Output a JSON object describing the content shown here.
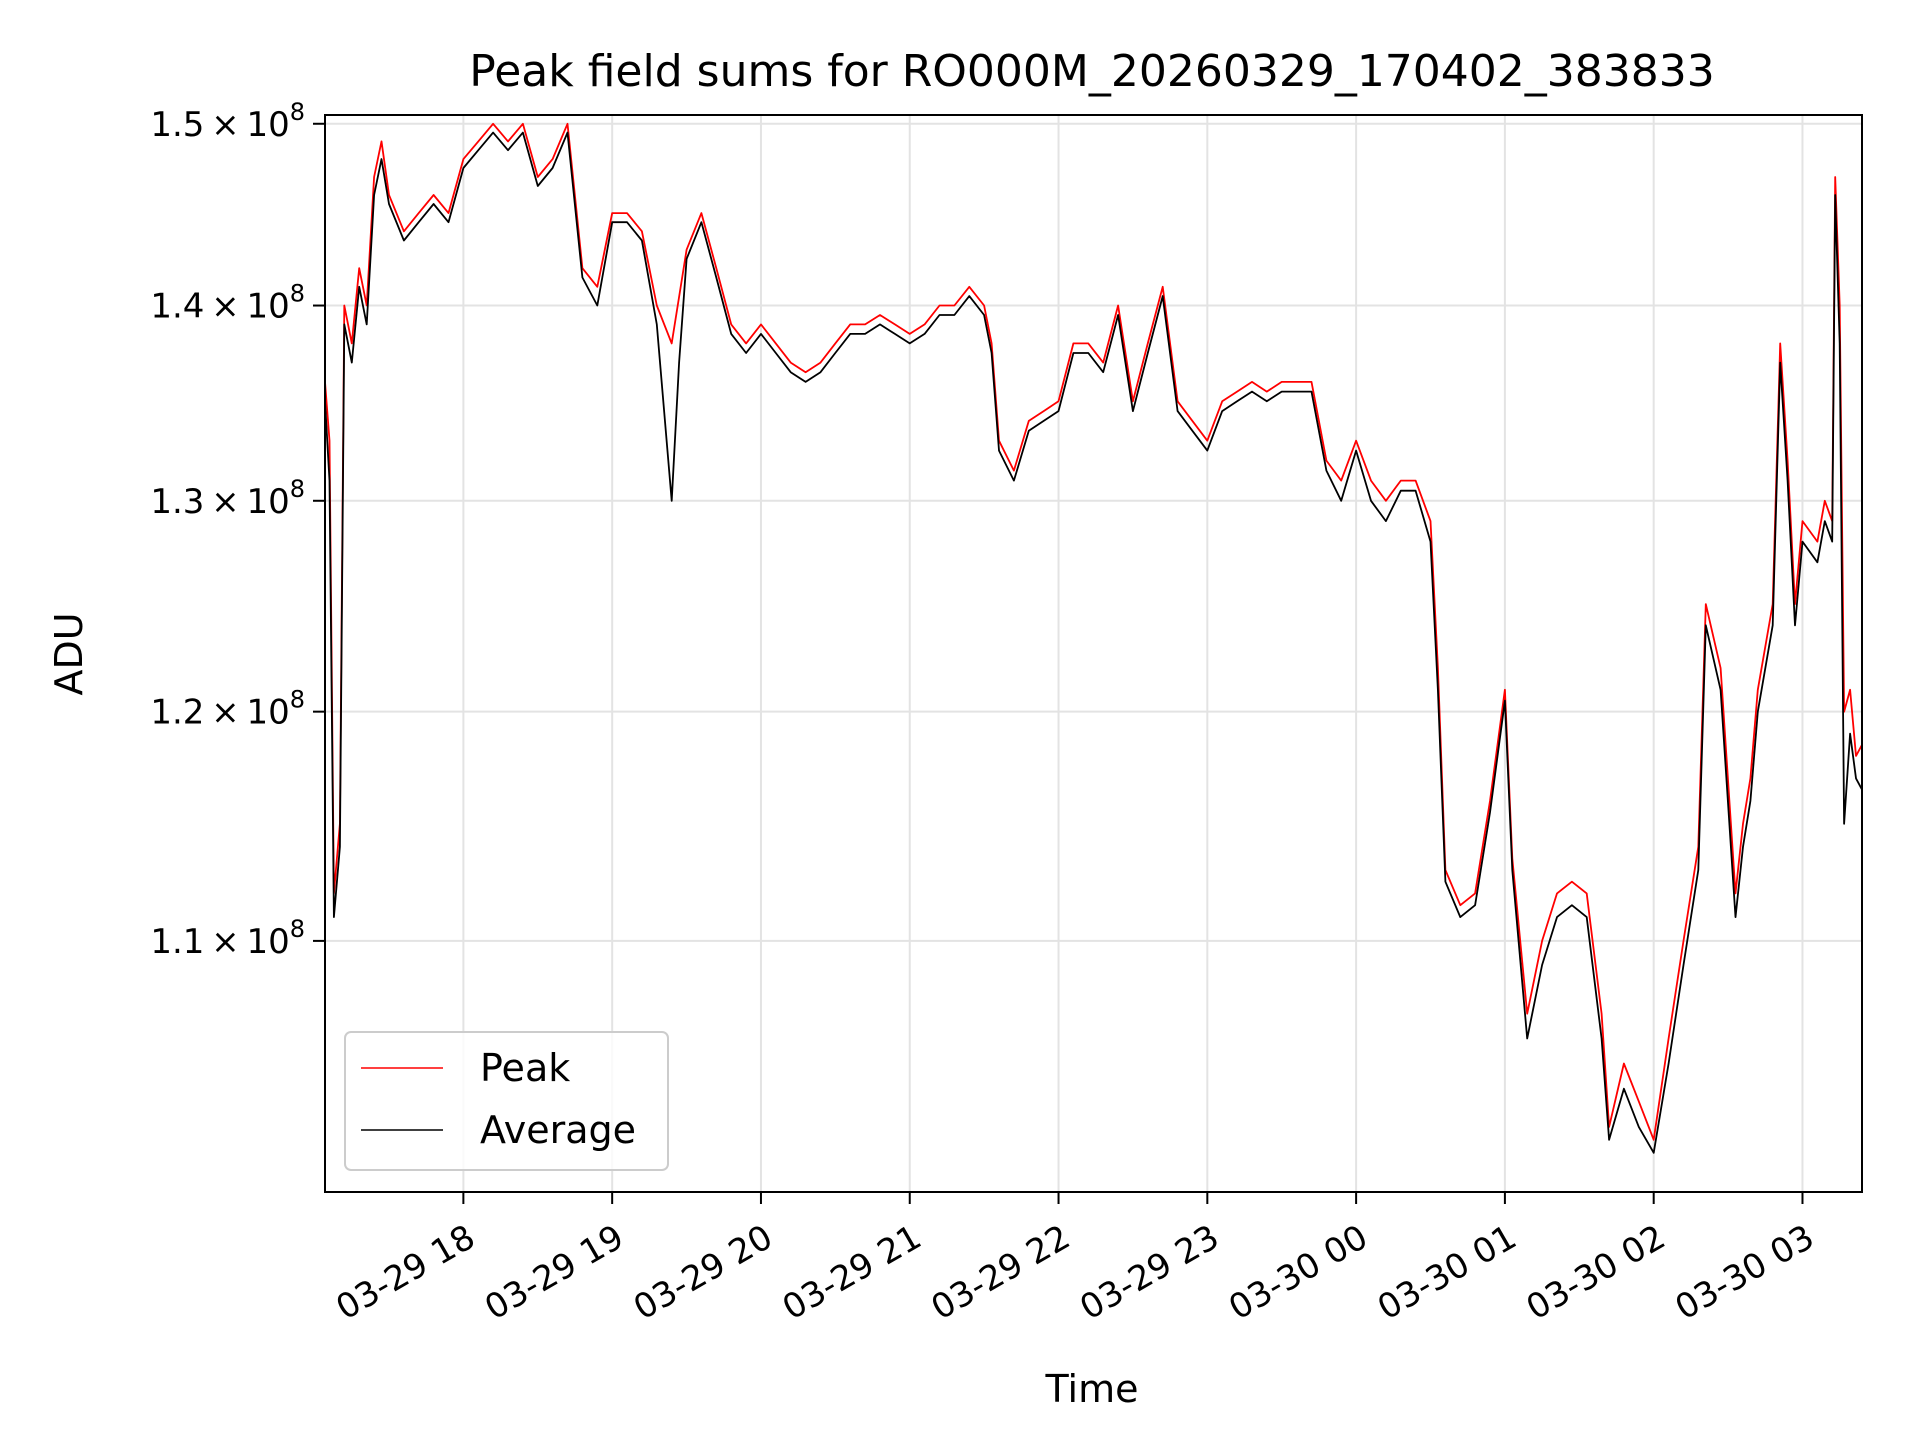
{
  "chart_data": {
    "type": "line",
    "title": "Peak field sums for RO000M_20260329_170402_383833",
    "xlabel": "Time",
    "ylabel": "ADU",
    "x_ticks": [
      "03-29 18",
      "03-29 19",
      "03-29 20",
      "03-29 21",
      "03-29 22",
      "03-29 23",
      "03-30 00",
      "03-30 01",
      "03-30 02",
      "03-30 03"
    ],
    "x_tick_hours": [
      18,
      19,
      20,
      21,
      22,
      23,
      24,
      25,
      26,
      27
    ],
    "xlim_hours": [
      17.07,
      27.4
    ],
    "y_ticks": [
      110000000.0,
      120000000.0,
      130000000.0,
      140000000.0,
      150000000.0
    ],
    "y_tick_labels": [
      {
        "mant": "1.1",
        "base": "10",
        "exp": "8"
      },
      {
        "mant": "1.2",
        "base": "10",
        "exp": "8"
      },
      {
        "mant": "1.3",
        "base": "10",
        "exp": "8"
      },
      {
        "mant": "1.4",
        "base": "10",
        "exp": "8"
      },
      {
        "mant": "1.5",
        "base": "10",
        "exp": "8"
      }
    ],
    "ylim": [
      100000000.0,
      150500000.0
    ],
    "y_scale": "log",
    "grid": true,
    "legend": {
      "placement": "lower-left",
      "entries": [
        "Peak",
        "Average"
      ]
    },
    "x_unit_note": "hours since 2026-03-29 00:00",
    "series": [
      {
        "name": "Peak",
        "color": "#ff0000",
        "points": [
          [
            17.07,
            136000000.0
          ],
          [
            17.1,
            133000000.0
          ],
          [
            17.13,
            112000000.0
          ],
          [
            17.17,
            115000000.0
          ],
          [
            17.2,
            140000000.0
          ],
          [
            17.25,
            138000000.0
          ],
          [
            17.3,
            142000000.0
          ],
          [
            17.35,
            140000000.0
          ],
          [
            17.4,
            147000000.0
          ],
          [
            17.45,
            149000000.0
          ],
          [
            17.5,
            146000000.0
          ],
          [
            17.6,
            144000000.0
          ],
          [
            17.7,
            145000000.0
          ],
          [
            17.8,
            146000000.0
          ],
          [
            17.9,
            145000000.0
          ],
          [
            18.0,
            148000000.0
          ],
          [
            18.1,
            149000000.0
          ],
          [
            18.2,
            150000000.0
          ],
          [
            18.3,
            149000000.0
          ],
          [
            18.4,
            150000000.0
          ],
          [
            18.5,
            147000000.0
          ],
          [
            18.6,
            148000000.0
          ],
          [
            18.7,
            150000000.0
          ],
          [
            18.8,
            142000000.0
          ],
          [
            18.9,
            141000000.0
          ],
          [
            19.0,
            145000000.0
          ],
          [
            19.1,
            145000000.0
          ],
          [
            19.2,
            144000000.0
          ],
          [
            19.3,
            140000000.0
          ],
          [
            19.4,
            138000000.0
          ],
          [
            19.5,
            143000000.0
          ],
          [
            19.6,
            145000000.0
          ],
          [
            19.7,
            142000000.0
          ],
          [
            19.8,
            139000000.0
          ],
          [
            19.9,
            138000000.0
          ],
          [
            20.0,
            139000000.0
          ],
          [
            20.1,
            138000000.0
          ],
          [
            20.2,
            137000000.0
          ],
          [
            20.3,
            136500000.0
          ],
          [
            20.4,
            137000000.0
          ],
          [
            20.5,
            138000000.0
          ],
          [
            20.6,
            139000000.0
          ],
          [
            20.7,
            139000000.0
          ],
          [
            20.8,
            139500000.0
          ],
          [
            20.9,
            139000000.0
          ],
          [
            21.0,
            138500000.0
          ],
          [
            21.1,
            139000000.0
          ],
          [
            21.2,
            140000000.0
          ],
          [
            21.3,
            140000000.0
          ],
          [
            21.4,
            141000000.0
          ],
          [
            21.5,
            140000000.0
          ],
          [
            21.55,
            138000000.0
          ],
          [
            21.6,
            133000000.0
          ],
          [
            21.7,
            131500000.0
          ],
          [
            21.8,
            134000000.0
          ],
          [
            21.9,
            134500000.0
          ],
          [
            22.0,
            135000000.0
          ],
          [
            22.1,
            138000000.0
          ],
          [
            22.2,
            138000000.0
          ],
          [
            22.3,
            137000000.0
          ],
          [
            22.4,
            140000000.0
          ],
          [
            22.5,
            135000000.0
          ],
          [
            22.6,
            138000000.0
          ],
          [
            22.7,
            141000000.0
          ],
          [
            22.8,
            135000000.0
          ],
          [
            22.9,
            134000000.0
          ],
          [
            23.0,
            133000000.0
          ],
          [
            23.1,
            135000000.0
          ],
          [
            23.2,
            135500000.0
          ],
          [
            23.3,
            136000000.0
          ],
          [
            23.4,
            135500000.0
          ],
          [
            23.5,
            136000000.0
          ],
          [
            23.6,
            136000000.0
          ],
          [
            23.7,
            136000000.0
          ],
          [
            23.8,
            132000000.0
          ],
          [
            23.9,
            131000000.0
          ],
          [
            24.0,
            133000000.0
          ],
          [
            24.1,
            131000000.0
          ],
          [
            24.2,
            130000000.0
          ],
          [
            24.3,
            131000000.0
          ],
          [
            24.4,
            131000000.0
          ],
          [
            24.5,
            129000000.0
          ],
          [
            24.55,
            122000000.0
          ],
          [
            24.6,
            113000000.0
          ],
          [
            24.7,
            111500000.0
          ],
          [
            24.8,
            112000000.0
          ],
          [
            24.9,
            116000000.0
          ],
          [
            25.0,
            121000000.0
          ],
          [
            25.05,
            113500000.0
          ],
          [
            25.15,
            107000000.0
          ],
          [
            25.25,
            110000000.0
          ],
          [
            25.35,
            112000000.0
          ],
          [
            25.45,
            112500000.0
          ],
          [
            25.55,
            112000000.0
          ],
          [
            25.65,
            107000000.0
          ],
          [
            25.7,
            102500000.0
          ],
          [
            25.8,
            105000000.0
          ],
          [
            25.9,
            103500000.0
          ],
          [
            26.0,
            102000000.0
          ],
          [
            26.1,
            106000000.0
          ],
          [
            26.2,
            110000000.0
          ],
          [
            26.3,
            114000000.0
          ],
          [
            26.35,
            125000000.0
          ],
          [
            26.45,
            122000000.0
          ],
          [
            26.55,
            112000000.0
          ],
          [
            26.6,
            115000000.0
          ],
          [
            26.65,
            117000000.0
          ],
          [
            26.7,
            121000000.0
          ],
          [
            26.8,
            125000000.0
          ],
          [
            26.85,
            138000000.0
          ],
          [
            26.9,
            132000000.0
          ],
          [
            26.95,
            125000000.0
          ],
          [
            27.0,
            129000000.0
          ],
          [
            27.1,
            128000000.0
          ],
          [
            27.15,
            130000000.0
          ],
          [
            27.2,
            129000000.0
          ],
          [
            27.22,
            147000000.0
          ],
          [
            27.25,
            140000000.0
          ],
          [
            27.28,
            120000000.0
          ],
          [
            27.32,
            121000000.0
          ],
          [
            27.36,
            118000000.0
          ],
          [
            27.4,
            118500000.0
          ]
        ]
      },
      {
        "name": "Average",
        "color": "#000000",
        "points": [
          [
            17.07,
            135000000.0
          ],
          [
            17.1,
            131000000.0
          ],
          [
            17.13,
            111000000.0
          ],
          [
            17.17,
            114000000.0
          ],
          [
            17.2,
            139000000.0
          ],
          [
            17.25,
            137000000.0
          ],
          [
            17.3,
            141000000.0
          ],
          [
            17.35,
            139000000.0
          ],
          [
            17.4,
            146000000.0
          ],
          [
            17.45,
            148000000.0
          ],
          [
            17.5,
            145500000.0
          ],
          [
            17.6,
            143500000.0
          ],
          [
            17.7,
            144500000.0
          ],
          [
            17.8,
            145500000.0
          ],
          [
            17.9,
            144500000.0
          ],
          [
            18.0,
            147500000.0
          ],
          [
            18.1,
            148500000.0
          ],
          [
            18.2,
            149500000.0
          ],
          [
            18.3,
            148500000.0
          ],
          [
            18.4,
            149500000.0
          ],
          [
            18.5,
            146500000.0
          ],
          [
            18.6,
            147500000.0
          ],
          [
            18.7,
            149500000.0
          ],
          [
            18.8,
            141500000.0
          ],
          [
            18.9,
            140000000.0
          ],
          [
            19.0,
            144500000.0
          ],
          [
            19.1,
            144500000.0
          ],
          [
            19.2,
            143500000.0
          ],
          [
            19.3,
            139000000.0
          ],
          [
            19.4,
            130000000.0
          ],
          [
            19.45,
            137000000.0
          ],
          [
            19.5,
            142500000.0
          ],
          [
            19.6,
            144500000.0
          ],
          [
            19.7,
            141500000.0
          ],
          [
            19.8,
            138500000.0
          ],
          [
            19.9,
            137500000.0
          ],
          [
            20.0,
            138500000.0
          ],
          [
            20.1,
            137500000.0
          ],
          [
            20.2,
            136500000.0
          ],
          [
            20.3,
            136000000.0
          ],
          [
            20.4,
            136500000.0
          ],
          [
            20.5,
            137500000.0
          ],
          [
            20.6,
            138500000.0
          ],
          [
            20.7,
            138500000.0
          ],
          [
            20.8,
            139000000.0
          ],
          [
            20.9,
            138500000.0
          ],
          [
            21.0,
            138000000.0
          ],
          [
            21.1,
            138500000.0
          ],
          [
            21.2,
            139500000.0
          ],
          [
            21.3,
            139500000.0
          ],
          [
            21.4,
            140500000.0
          ],
          [
            21.5,
            139500000.0
          ],
          [
            21.55,
            137500000.0
          ],
          [
            21.6,
            132500000.0
          ],
          [
            21.7,
            131000000.0
          ],
          [
            21.8,
            133500000.0
          ],
          [
            21.9,
            134000000.0
          ],
          [
            22.0,
            134500000.0
          ],
          [
            22.1,
            137500000.0
          ],
          [
            22.2,
            137500000.0
          ],
          [
            22.3,
            136500000.0
          ],
          [
            22.4,
            139500000.0
          ],
          [
            22.5,
            134500000.0
          ],
          [
            22.6,
            137500000.0
          ],
          [
            22.7,
            140500000.0
          ],
          [
            22.8,
            134500000.0
          ],
          [
            22.9,
            133500000.0
          ],
          [
            23.0,
            132500000.0
          ],
          [
            23.1,
            134500000.0
          ],
          [
            23.2,
            135000000.0
          ],
          [
            23.3,
            135500000.0
          ],
          [
            23.4,
            135000000.0
          ],
          [
            23.5,
            135500000.0
          ],
          [
            23.6,
            135500000.0
          ],
          [
            23.7,
            135500000.0
          ],
          [
            23.8,
            131500000.0
          ],
          [
            23.9,
            130000000.0
          ],
          [
            24.0,
            132500000.0
          ],
          [
            24.1,
            130000000.0
          ],
          [
            24.2,
            129000000.0
          ],
          [
            24.3,
            130500000.0
          ],
          [
            24.4,
            130500000.0
          ],
          [
            24.5,
            128000000.0
          ],
          [
            24.55,
            121000000.0
          ],
          [
            24.6,
            112500000.0
          ],
          [
            24.7,
            111000000.0
          ],
          [
            24.8,
            111500000.0
          ],
          [
            24.9,
            115500000.0
          ],
          [
            25.0,
            120500000.0
          ],
          [
            25.05,
            113000000.0
          ],
          [
            25.15,
            106000000.0
          ],
          [
            25.25,
            109000000.0
          ],
          [
            25.35,
            111000000.0
          ],
          [
            25.45,
            111500000.0
          ],
          [
            25.55,
            111000000.0
          ],
          [
            25.65,
            106000000.0
          ],
          [
            25.7,
            102000000.0
          ],
          [
            25.8,
            104000000.0
          ],
          [
            25.9,
            102500000.0
          ],
          [
            26.0,
            101500000.0
          ],
          [
            26.1,
            105000000.0
          ],
          [
            26.2,
            109000000.0
          ],
          [
            26.3,
            113000000.0
          ],
          [
            26.35,
            124000000.0
          ],
          [
            26.45,
            121000000.0
          ],
          [
            26.55,
            111000000.0
          ],
          [
            26.6,
            114000000.0
          ],
          [
            26.65,
            116000000.0
          ],
          [
            26.7,
            120000000.0
          ],
          [
            26.8,
            124000000.0
          ],
          [
            26.85,
            137000000.0
          ],
          [
            26.9,
            131000000.0
          ],
          [
            26.95,
            124000000.0
          ],
          [
            27.0,
            128000000.0
          ],
          [
            27.1,
            127000000.0
          ],
          [
            27.15,
            129000000.0
          ],
          [
            27.2,
            128000000.0
          ],
          [
            27.22,
            146000000.0
          ],
          [
            27.25,
            138000000.0
          ],
          [
            27.28,
            115000000.0
          ],
          [
            27.32,
            119000000.0
          ],
          [
            27.36,
            117000000.0
          ],
          [
            27.4,
            116500000.0
          ]
        ]
      }
    ]
  }
}
